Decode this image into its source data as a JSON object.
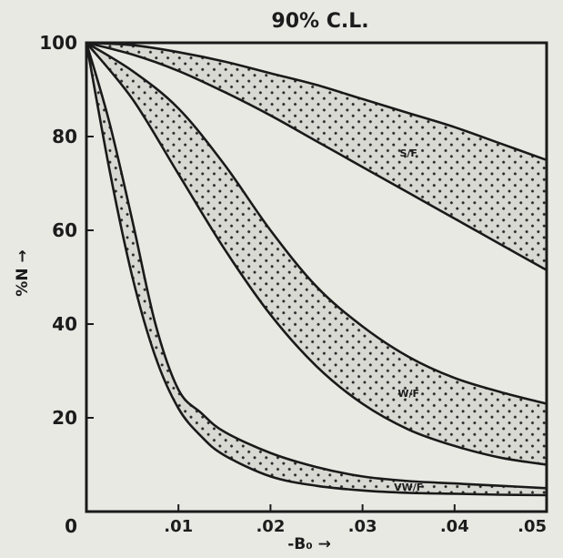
{
  "chart_data": {
    "type": "area",
    "title": "90% C.L.",
    "xlabel": "-B₀ →",
    "ylabel": "%N →",
    "xlim": [
      0,
      0.05
    ],
    "ylim": [
      0,
      100
    ],
    "x_ticks": [
      ".01",
      ".02",
      ".03",
      ".04",
      ".05"
    ],
    "y_ticks": [
      "0",
      "20",
      "40",
      "60",
      "80",
      "100"
    ],
    "grid": false,
    "legend": "none",
    "band_fill": "#d9d9d3",
    "band_dot_color": "#2a2a2a",
    "line_color": "#1a1a1a",
    "bands": [
      {
        "label": "S/F",
        "upper": {
          "x": [
            0,
            0.005,
            0.01,
            0.015,
            0.02,
            0.025,
            0.03,
            0.035,
            0.04,
            0.045,
            0.05
          ],
          "y": [
            100,
            99.5,
            98,
            96,
            93.5,
            91,
            88,
            85,
            82,
            78.5,
            75
          ]
        },
        "lower": {
          "x": [
            0,
            0.005,
            0.01,
            0.015,
            0.02,
            0.025,
            0.03,
            0.035,
            0.04,
            0.045,
            0.05
          ],
          "y": [
            100,
            97.5,
            94,
            89.5,
            84.5,
            79,
            73.5,
            68,
            62.5,
            57,
            51.5
          ]
        }
      },
      {
        "label": "W/F",
        "upper": {
          "x": [
            0,
            0.005,
            0.01,
            0.015,
            0.02,
            0.025,
            0.03,
            0.035,
            0.04,
            0.045,
            0.05
          ],
          "y": [
            100,
            94,
            86,
            74,
            60,
            48,
            39.5,
            33,
            28.5,
            25.5,
            23
          ]
        },
        "lower": {
          "x": [
            0,
            0.005,
            0.01,
            0.015,
            0.02,
            0.025,
            0.03,
            0.035,
            0.04,
            0.045,
            0.05
          ],
          "y": [
            100,
            88,
            72,
            56,
            42,
            31,
            23,
            17.5,
            14,
            11.5,
            10
          ]
        }
      },
      {
        "label": "VW/F",
        "upper": {
          "x": [
            0,
            0.0025,
            0.005,
            0.0075,
            0.01,
            0.0125,
            0.015,
            0.02,
            0.025,
            0.03,
            0.035,
            0.04,
            0.045,
            0.05
          ],
          "y": [
            100,
            83,
            62,
            40,
            26,
            21,
            17,
            12.5,
            9.5,
            7.5,
            6.5,
            6,
            5.5,
            5
          ]
        },
        "lower": {
          "x": [
            0,
            0.0025,
            0.005,
            0.0075,
            0.01,
            0.0125,
            0.015,
            0.02,
            0.025,
            0.03,
            0.035,
            0.04,
            0.045,
            0.05
          ],
          "y": [
            100,
            73,
            50,
            33,
            22,
            16,
            12,
            7.5,
            5.5,
            4.5,
            4,
            3.8,
            3.6,
            3.5
          ]
        }
      }
    ]
  }
}
